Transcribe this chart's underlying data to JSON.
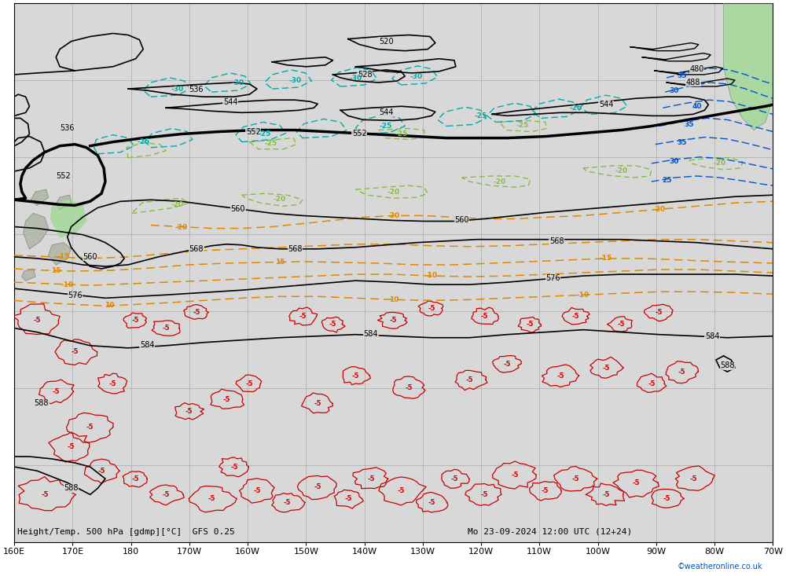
{
  "title": "Height/Temp. 500 hPa [gdmp][°C]  GFS 0.25",
  "subtitle": "Mo 23-09-2024 12:00 UTC (12+24)",
  "credit": "©weatheronline.co.uk",
  "bottom_label": "Height/Temp. 500 hPa [gdmp][°C]  GFS 0.25",
  "x_tick_labels": [
    "160E",
    "170E",
    "180",
    "170W",
    "160W",
    "150W",
    "140W",
    "130W",
    "120W",
    "110W",
    "100W",
    "90W",
    "80W",
    "70W"
  ],
  "bg_color": "#d8d8d8",
  "black": "#000000",
  "red": "#cc0000",
  "orange": "#dd8800",
  "cyan": "#00aaaa",
  "blue": "#0055cc",
  "green_line": "#44aa44",
  "land_green": "#aad8a0",
  "land_gray": "#b0b0b0"
}
